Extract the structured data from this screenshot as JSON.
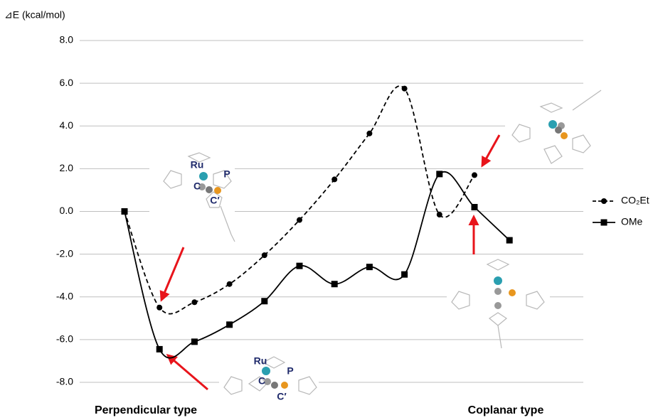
{
  "chart_data": {
    "type": "line",
    "y_label": "⊿E (kcal/mol)",
    "annotations": [
      "Perpendicular type",
      "Coplanar type",
      "Ru",
      "P",
      "C",
      "C′",
      "Ru",
      "P",
      "C",
      "C′"
    ],
    "categories": [
      null,
      null,
      null,
      null,
      null,
      null,
      null,
      null,
      null,
      null,
      null,
      null
    ],
    "series": [
      {
        "name": "CO₂Et",
        "color": "#000000",
        "dashed": true,
        "marker": "circle",
        "values": [
          0,
          -4.5,
          -4.25,
          -3.4,
          -2.05,
          -0.4,
          1.5,
          3.65,
          5.75,
          -0.15,
          1.7,
          null
        ]
      },
      {
        "name": "OMe",
        "color": "#000000",
        "dashed": false,
        "marker": "square",
        "values": [
          0,
          -6.45,
          -6.1,
          -5.3,
          -4.2,
          -2.55,
          -3.4,
          -2.6,
          -2.95,
          1.75,
          0.2,
          -1.35
        ]
      }
    ],
    "ylim": [
      -8,
      8
    ],
    "yticks": [
      {
        "value": -8,
        "label": "-8.0"
      },
      {
        "value": -6,
        "label": "-6.0"
      },
      {
        "value": -4,
        "label": "-4.0"
      },
      {
        "value": -2,
        "label": "-2.0"
      },
      {
        "value": 0,
        "label": "0.0"
      },
      {
        "value": 2,
        "label": "2.0"
      },
      {
        "value": 4,
        "label": "4.0"
      },
      {
        "value": 6,
        "label": "6.0"
      },
      {
        "value": 8,
        "label": "8.0"
      }
    ],
    "grid": true,
    "smooth": true,
    "legend": "right"
  }
}
